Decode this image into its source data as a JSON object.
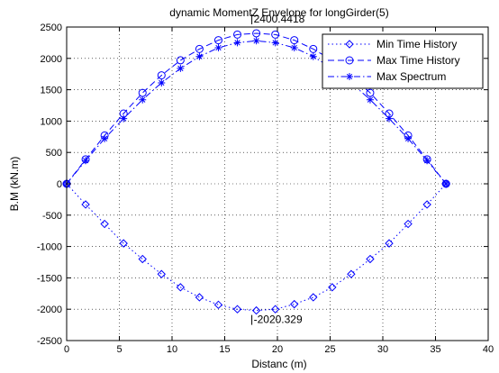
{
  "chart_data": {
    "type": "line",
    "title": "dynamic MomentZ Envelope for longGirder(5)",
    "xlabel": "Distanc (m)",
    "ylabel": "B.M (kN.m)",
    "xlim": [
      0,
      40
    ],
    "ylim": [
      -2500,
      2500
    ],
    "xticks": [
      0,
      5,
      10,
      15,
      20,
      25,
      30,
      35,
      40
    ],
    "yticks": [
      -2500,
      -2000,
      -1500,
      -1000,
      -500,
      0,
      500,
      1000,
      1500,
      2000,
      2500
    ],
    "grid": true,
    "legend_position": "top-right",
    "x": [
      0,
      1.8,
      3.6,
      5.4,
      7.2,
      9.0,
      10.8,
      12.6,
      14.4,
      16.2,
      18.0,
      19.8,
      21.6,
      23.4,
      25.2,
      27.0,
      28.8,
      30.6,
      32.4,
      34.2,
      36.0
    ],
    "series": [
      {
        "name": "Min Time History",
        "marker": "diamond",
        "dash": "dotted",
        "values": [
          0,
          -330,
          -640,
          -950,
          -1200,
          -1440,
          -1650,
          -1810,
          -1930,
          -2000,
          -2020,
          -2000,
          -1920,
          -1810,
          -1650,
          -1440,
          -1200,
          -950,
          -640,
          -330,
          0
        ]
      },
      {
        "name": "Max Time History",
        "marker": "circle",
        "dash": "dashed",
        "values": [
          0,
          390,
          770,
          1120,
          1450,
          1730,
          1970,
          2150,
          2290,
          2380,
          2400,
          2380,
          2290,
          2150,
          1970,
          1730,
          1450,
          1120,
          770,
          390,
          0
        ]
      },
      {
        "name": "Max Spectrum",
        "marker": "star",
        "dash": "dashdot",
        "values": [
          0,
          370,
          720,
          1040,
          1340,
          1610,
          1840,
          2030,
          2170,
          2250,
          2280,
          2250,
          2170,
          2030,
          1840,
          1610,
          1340,
          1040,
          720,
          370,
          0
        ]
      }
    ],
    "annotations": [
      {
        "text": "2400.4418",
        "x": 18.0,
        "y": 2400
      },
      {
        "text": "-2020.329",
        "x": 18.0,
        "y": -2020
      }
    ],
    "colors": {
      "line": "#0000ff",
      "grid": "#000000",
      "axes": "#000000"
    }
  }
}
